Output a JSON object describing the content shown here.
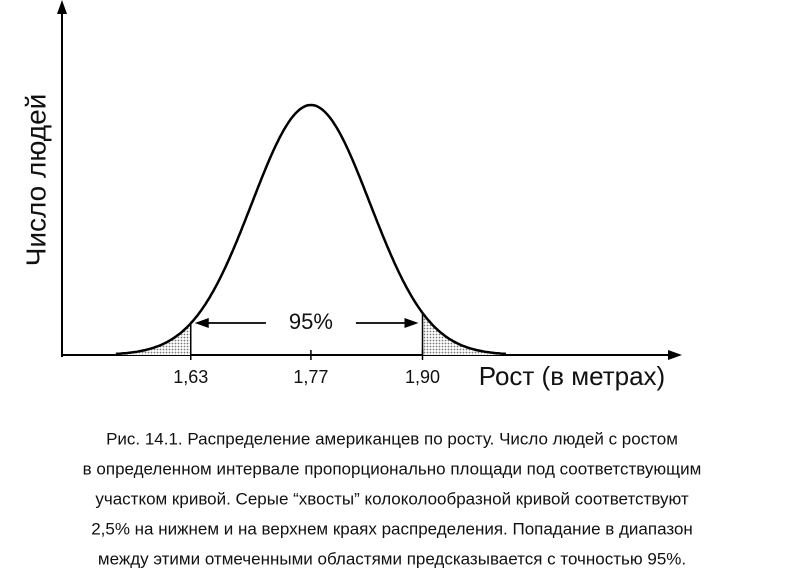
{
  "chart_data": {
    "type": "bell",
    "y_label": "Число людей",
    "x_label": "Рост (в метрах)",
    "xlim": [
      1.48,
      2.2
    ],
    "xticks": [
      {
        "value": 1.63,
        "label": "1,63"
      },
      {
        "value": 1.77,
        "label": "1,77"
      },
      {
        "value": 1.9,
        "label": "1,90"
      }
    ],
    "annotation": "95%",
    "tail_color": "#bbbbbb",
    "caption": [
      "Рис. 14.1. Распределение американцев по росту. Число людей с ростом",
      "в определенном интервале пропорционально площади под соответствующим",
      "участком кривой. Серые “хвосты” колоколообразной кривой соответствуют",
      "2,5% на нижнем и на верхнем краях распределения. Попадание в диапазон",
      "между этими отмеченными областями предсказывается с точностью 95%."
    ]
  }
}
